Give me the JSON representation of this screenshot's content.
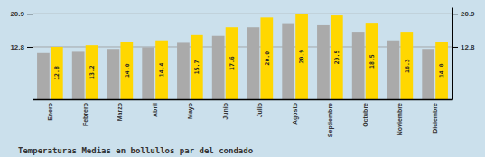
{
  "chart_data": {
    "type": "bar",
    "title": "Temperaturas Medias en bollullos par del condado",
    "categories": [
      "Enero",
      "Febrero",
      "Marzo",
      "Abril",
      "Mayo",
      "Junio",
      "Julio",
      "Agosto",
      "Septiembre",
      "Octubre",
      "Noviembre",
      "Diciembre"
    ],
    "series": [
      {
        "color": "#AAAAAA",
        "values": [
          11.3,
          11.6,
          12.3,
          12.7,
          13.8,
          15.5,
          17.6,
          18.4,
          18.1,
          16.3,
          14.4,
          12.3
        ]
      },
      {
        "color": "#FFD700",
        "values": [
          12.8,
          13.2,
          14.0,
          14.4,
          15.7,
          17.6,
          20.0,
          20.9,
          20.5,
          18.5,
          16.3,
          14.0
        ],
        "value_labels": [
          "12.8",
          "13.2",
          "14.0",
          "14.4",
          "15.7",
          "17.6",
          "20.0",
          "20.9",
          "20.5",
          "18.5",
          "16.3",
          "14.0"
        ],
        "data_labels": true
      }
    ],
    "ylim": [
      0,
      22.5
    ],
    "yticks": [
      12.8,
      20.9
    ],
    "grid": true
  }
}
